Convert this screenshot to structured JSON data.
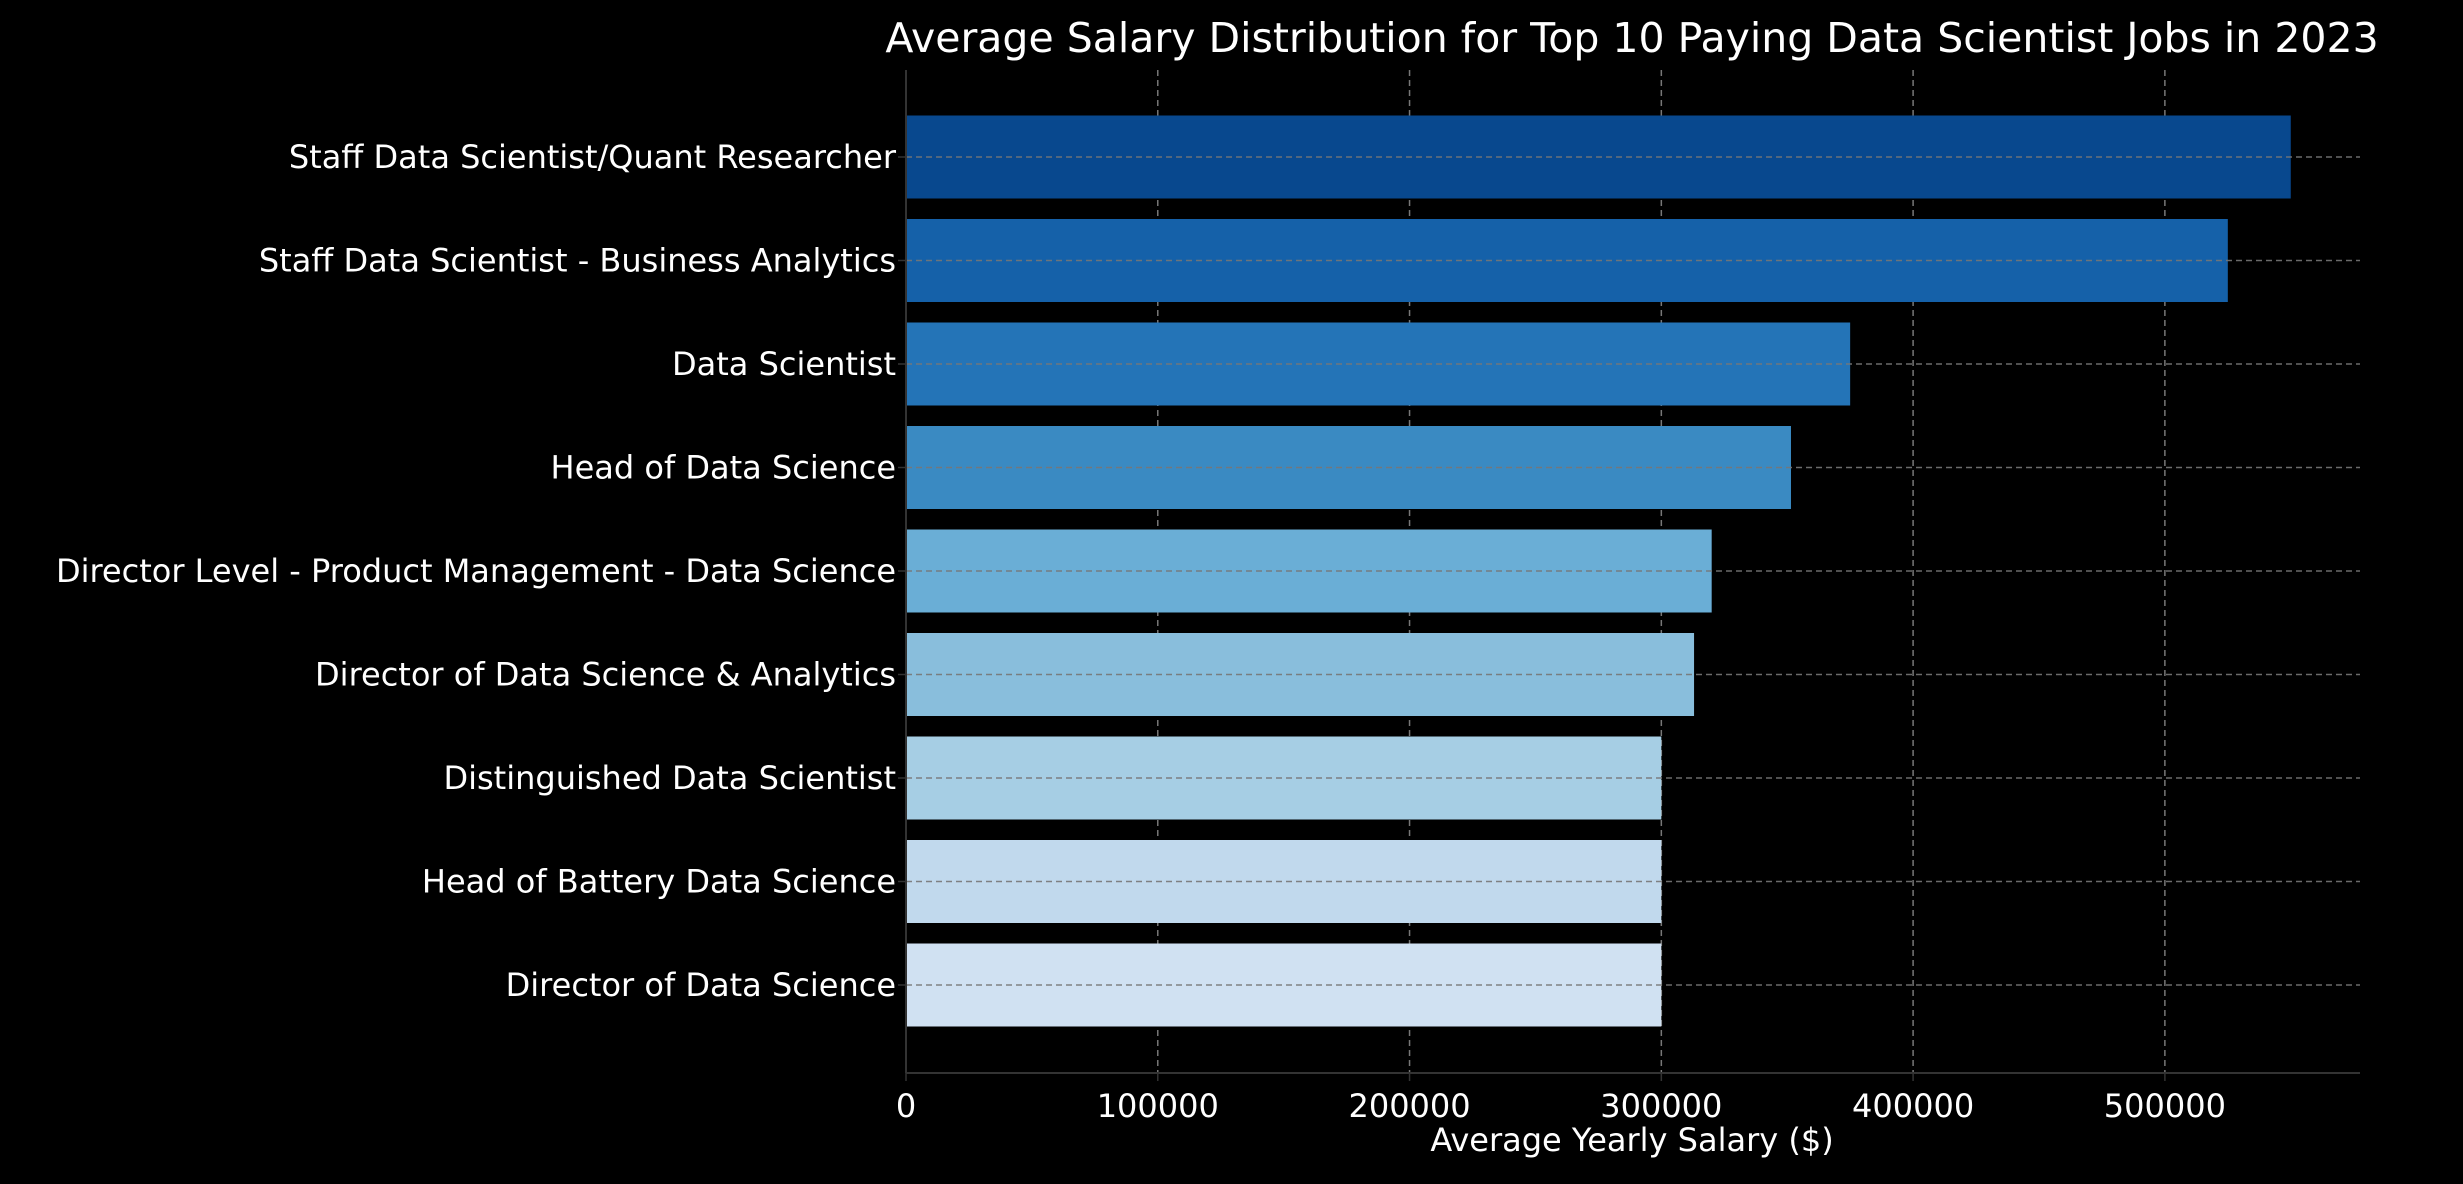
{
  "chart_data": {
    "type": "bar",
    "orientation": "horizontal",
    "title": "Average Salary Distribution for Top 10 Paying Data Scientist Jobs in 2023",
    "xlabel": "Average Yearly Salary ($)",
    "ylabel": "",
    "xlim": [
      0,
      577500
    ],
    "xticks": [
      0,
      100000,
      200000,
      300000,
      400000,
      500000
    ],
    "xtick_labels": [
      "0",
      "100000",
      "200000",
      "300000",
      "400000",
      "500000"
    ],
    "grid": true,
    "legend": "none",
    "categories": [
      "Staff Data Scientist/Quant Researcher",
      "Staff Data Scientist - Business Analytics",
      "Data Scientist",
      "Head of Data Science",
      "Director Level - Product Management - Data Science",
      "Director of Data Science & Analytics",
      "Distinguished Data Scientist",
      "Head of Battery Data Science",
      "Director of Data Science"
    ],
    "values": [
      550000,
      525000,
      375000,
      351500,
      320000,
      313000,
      300000,
      300000,
      300000
    ],
    "colors": [
      "#08488e",
      "#1561a9",
      "#2474b7",
      "#3a8ac2",
      "#6aaed6",
      "#89bedc",
      "#a6cee4",
      "#c1d9ed",
      "#d0e1f2"
    ],
    "background": "#000000",
    "text_color": "#ffffff",
    "grid_color": "#777777"
  }
}
